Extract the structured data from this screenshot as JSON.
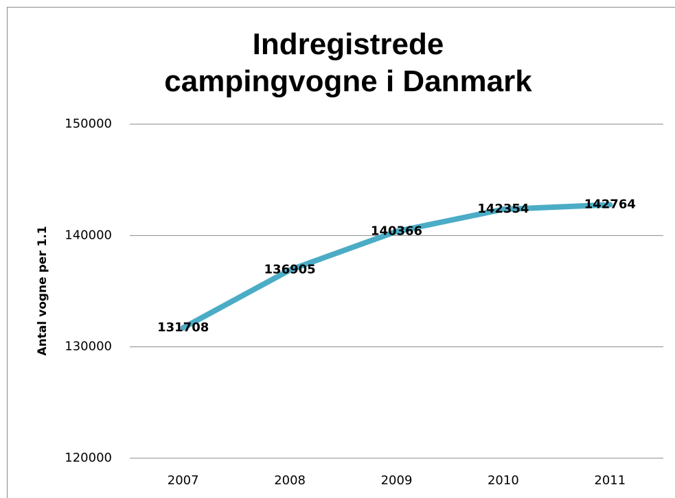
{
  "chart_data": {
    "type": "line",
    "title": "Indregistrede campingvogne i Danmark",
    "y_label": "Antal vogne per 1.1",
    "categories": [
      "2007",
      "2008",
      "2009",
      "2010",
      "2011"
    ],
    "series": [
      {
        "name": "Antal vogne",
        "color": "#4bacc6",
        "values": [
          131708,
          136905,
          140366,
          142354,
          142764
        ]
      }
    ],
    "ylim": [
      120000,
      150000
    ],
    "yticks": [
      120000,
      130000,
      140000,
      150000
    ],
    "grid": true
  }
}
